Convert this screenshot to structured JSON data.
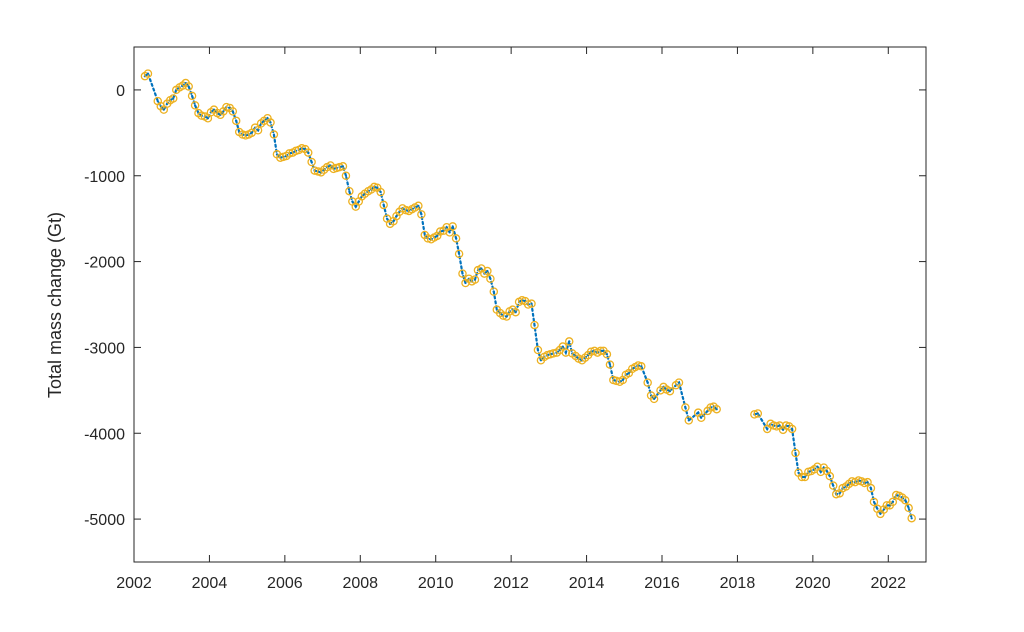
{
  "chart_data": {
    "type": "line",
    "title": "",
    "xlabel": "",
    "ylabel": "Total mass change (Gt)",
    "xlim": [
      2002,
      2023
    ],
    "ylim": [
      -5500,
      500
    ],
    "x_ticks": [
      2002,
      2004,
      2006,
      2008,
      2010,
      2012,
      2014,
      2016,
      2018,
      2020,
      2022
    ],
    "y_ticks": [
      0,
      -1000,
      -2000,
      -3000,
      -4000,
      -5000
    ],
    "x_tick_labels": [
      "2002",
      "2004",
      "2006",
      "2008",
      "2010",
      "2012",
      "2014",
      "2016",
      "2018",
      "2020",
      "2022"
    ],
    "y_tick_labels": [
      "0",
      "-1000",
      "-2000",
      "-3000",
      "-4000",
      "-5000"
    ],
    "grid": false,
    "colors": {
      "line": "#0072BD",
      "marker": "#EDB120",
      "marker_center": "#0072BD",
      "axis": "#262626"
    },
    "series": [
      {
        "style": "dotted line with circle markers",
        "segments": [
          [
            [
              2002.29,
              160
            ],
            [
              2002.37,
              190
            ],
            [
              2002.63,
              -130
            ],
            [
              2002.71,
              -190
            ],
            [
              2002.79,
              -230
            ],
            [
              2002.88,
              -160
            ],
            [
              2002.96,
              -120
            ],
            [
              2003.04,
              -100
            ],
            [
              2003.12,
              0
            ],
            [
              2003.21,
              30
            ],
            [
              2003.29,
              50
            ],
            [
              2003.37,
              80
            ],
            [
              2003.45,
              40
            ],
            [
              2003.54,
              -70
            ],
            [
              2003.62,
              -180
            ],
            [
              2003.71,
              -270
            ],
            [
              2003.79,
              -300
            ],
            [
              2003.88,
              -310
            ],
            [
              2003.96,
              -330
            ],
            [
              2004.04,
              -260
            ],
            [
              2004.12,
              -230
            ],
            [
              2004.21,
              -270
            ],
            [
              2004.29,
              -290
            ],
            [
              2004.37,
              -250
            ],
            [
              2004.45,
              -200
            ],
            [
              2004.54,
              -210
            ],
            [
              2004.62,
              -250
            ],
            [
              2004.71,
              -360
            ],
            [
              2004.79,
              -490
            ],
            [
              2004.88,
              -520
            ],
            [
              2004.96,
              -530
            ],
            [
              2005.04,
              -520
            ],
            [
              2005.12,
              -500
            ],
            [
              2005.21,
              -440
            ],
            [
              2005.29,
              -470
            ],
            [
              2005.37,
              -390
            ],
            [
              2005.45,
              -360
            ],
            [
              2005.54,
              -330
            ],
            [
              2005.62,
              -380
            ],
            [
              2005.71,
              -520
            ],
            [
              2005.79,
              -750
            ],
            [
              2005.88,
              -790
            ],
            [
              2005.96,
              -780
            ],
            [
              2006.04,
              -770
            ],
            [
              2006.12,
              -740
            ],
            [
              2006.21,
              -730
            ],
            [
              2006.29,
              -710
            ],
            [
              2006.37,
              -700
            ],
            [
              2006.45,
              -680
            ],
            [
              2006.54,
              -690
            ],
            [
              2006.62,
              -730
            ],
            [
              2006.71,
              -840
            ],
            [
              2006.79,
              -940
            ],
            [
              2006.88,
              -950
            ],
            [
              2006.96,
              -960
            ],
            [
              2007.04,
              -930
            ],
            [
              2007.12,
              -900
            ],
            [
              2007.21,
              -880
            ],
            [
              2007.29,
              -920
            ],
            [
              2007.37,
              -910
            ],
            [
              2007.45,
              -900
            ],
            [
              2007.54,
              -890
            ],
            [
              2007.62,
              -1000
            ],
            [
              2007.71,
              -1180
            ],
            [
              2007.79,
              -1300
            ],
            [
              2007.88,
              -1360
            ],
            [
              2007.96,
              -1300
            ],
            [
              2008.04,
              -1240
            ],
            [
              2008.12,
              -1210
            ],
            [
              2008.21,
              -1180
            ],
            [
              2008.29,
              -1160
            ],
            [
              2008.37,
              -1130
            ],
            [
              2008.45,
              -1140
            ],
            [
              2008.54,
              -1190
            ],
            [
              2008.62,
              -1340
            ],
            [
              2008.71,
              -1500
            ],
            [
              2008.79,
              -1560
            ],
            [
              2008.88,
              -1530
            ],
            [
              2008.96,
              -1470
            ],
            [
              2009.04,
              -1420
            ],
            [
              2009.12,
              -1380
            ],
            [
              2009.21,
              -1400
            ],
            [
              2009.29,
              -1410
            ],
            [
              2009.37,
              -1390
            ],
            [
              2009.45,
              -1370
            ],
            [
              2009.54,
              -1350
            ],
            [
              2009.62,
              -1450
            ],
            [
              2009.71,
              -1690
            ],
            [
              2009.79,
              -1730
            ],
            [
              2009.88,
              -1740
            ],
            [
              2009.96,
              -1720
            ],
            [
              2010.04,
              -1700
            ],
            [
              2010.12,
              -1650
            ],
            [
              2010.21,
              -1640
            ],
            [
              2010.29,
              -1600
            ],
            [
              2010.37,
              -1660
            ],
            [
              2010.45,
              -1590
            ],
            [
              2010.54,
              -1730
            ],
            [
              2010.62,
              -1910
            ],
            [
              2010.71,
              -2140
            ],
            [
              2010.79,
              -2250
            ],
            [
              2010.88,
              -2200
            ],
            [
              2010.96,
              -2230
            ],
            [
              2011.04,
              -2210
            ],
            [
              2011.12,
              -2100
            ],
            [
              2011.21,
              -2080
            ],
            [
              2011.29,
              -2140
            ],
            [
              2011.37,
              -2110
            ],
            [
              2011.45,
              -2200
            ],
            [
              2011.54,
              -2350
            ],
            [
              2011.62,
              -2560
            ],
            [
              2011.71,
              -2600
            ],
            [
              2011.79,
              -2630
            ],
            [
              2011.88,
              -2640
            ],
            [
              2011.96,
              -2580
            ],
            [
              2012.04,
              -2560
            ],
            [
              2012.12,
              -2590
            ],
            [
              2012.21,
              -2470
            ],
            [
              2012.29,
              -2450
            ],
            [
              2012.37,
              -2460
            ],
            [
              2012.45,
              -2500
            ],
            [
              2012.54,
              -2490
            ],
            [
              2012.62,
              -2740
            ],
            [
              2012.71,
              -3030
            ],
            [
              2012.79,
              -3150
            ],
            [
              2012.88,
              -3110
            ],
            [
              2012.96,
              -3090
            ],
            [
              2013.04,
              -3080
            ],
            [
              2013.12,
              -3070
            ],
            [
              2013.21,
              -3060
            ],
            [
              2013.29,
              -3030
            ],
            [
              2013.37,
              -2990
            ],
            [
              2013.45,
              -3060
            ],
            [
              2013.54,
              -2930
            ],
            [
              2013.62,
              -3070
            ],
            [
              2013.71,
              -3100
            ],
            [
              2013.79,
              -3130
            ],
            [
              2013.88,
              -3150
            ],
            [
              2013.96,
              -3120
            ],
            [
              2014.04,
              -3090
            ],
            [
              2014.12,
              -3050
            ],
            [
              2014.21,
              -3040
            ],
            [
              2014.29,
              -3060
            ],
            [
              2014.37,
              -3040
            ],
            [
              2014.45,
              -3040
            ],
            [
              2014.54,
              -3080
            ],
            [
              2014.62,
              -3200
            ],
            [
              2014.71,
              -3380
            ],
            [
              2014.79,
              -3390
            ],
            [
              2014.88,
              -3400
            ],
            [
              2014.96,
              -3380
            ],
            [
              2015.04,
              -3320
            ],
            [
              2015.12,
              -3300
            ],
            [
              2015.21,
              -3250
            ],
            [
              2015.29,
              -3230
            ],
            [
              2015.37,
              -3210
            ],
            [
              2015.45,
              -3220
            ],
            [
              2015.62,
              -3410
            ],
            [
              2015.71,
              -3560
            ],
            [
              2015.79,
              -3600
            ],
            [
              2015.96,
              -3500
            ],
            [
              2016.04,
              -3460
            ],
            [
              2016.12,
              -3490
            ],
            [
              2016.21,
              -3510
            ],
            [
              2016.37,
              -3440
            ],
            [
              2016.45,
              -3410
            ],
            [
              2016.62,
              -3700
            ],
            [
              2016.71,
              -3850
            ],
            [
              2016.96,
              -3760
            ],
            [
              2017.04,
              -3820
            ],
            [
              2017.21,
              -3740
            ],
            [
              2017.29,
              -3700
            ],
            [
              2017.37,
              -3690
            ],
            [
              2017.45,
              -3720
            ]
          ],
          [
            [
              2018.45,
              -3780
            ],
            [
              2018.54,
              -3770
            ],
            [
              2018.79,
              -3950
            ],
            [
              2018.88,
              -3890
            ],
            [
              2018.96,
              -3910
            ],
            [
              2019.04,
              -3920
            ],
            [
              2019.12,
              -3910
            ],
            [
              2019.21,
              -3960
            ],
            [
              2019.29,
              -3910
            ],
            [
              2019.37,
              -3920
            ],
            [
              2019.45,
              -3950
            ],
            [
              2019.54,
              -4230
            ],
            [
              2019.62,
              -4460
            ],
            [
              2019.71,
              -4510
            ],
            [
              2019.79,
              -4510
            ],
            [
              2019.88,
              -4450
            ],
            [
              2019.96,
              -4440
            ],
            [
              2020.04,
              -4420
            ],
            [
              2020.12,
              -4390
            ],
            [
              2020.21,
              -4450
            ],
            [
              2020.29,
              -4400
            ],
            [
              2020.37,
              -4440
            ],
            [
              2020.45,
              -4500
            ],
            [
              2020.54,
              -4610
            ],
            [
              2020.62,
              -4710
            ],
            [
              2020.71,
              -4700
            ],
            [
              2020.79,
              -4640
            ],
            [
              2020.88,
              -4620
            ],
            [
              2020.96,
              -4590
            ],
            [
              2021.04,
              -4560
            ],
            [
              2021.12,
              -4570
            ],
            [
              2021.21,
              -4550
            ],
            [
              2021.29,
              -4560
            ],
            [
              2021.37,
              -4580
            ],
            [
              2021.45,
              -4570
            ],
            [
              2021.54,
              -4640
            ],
            [
              2021.62,
              -4800
            ],
            [
              2021.71,
              -4880
            ],
            [
              2021.79,
              -4940
            ],
            [
              2021.88,
              -4890
            ],
            [
              2021.96,
              -4840
            ],
            [
              2022.04,
              -4840
            ],
            [
              2022.12,
              -4800
            ],
            [
              2022.21,
              -4720
            ],
            [
              2022.29,
              -4730
            ],
            [
              2022.37,
              -4750
            ],
            [
              2022.45,
              -4780
            ],
            [
              2022.54,
              -4870
            ],
            [
              2022.62,
              -4990
            ]
          ]
        ]
      }
    ]
  }
}
